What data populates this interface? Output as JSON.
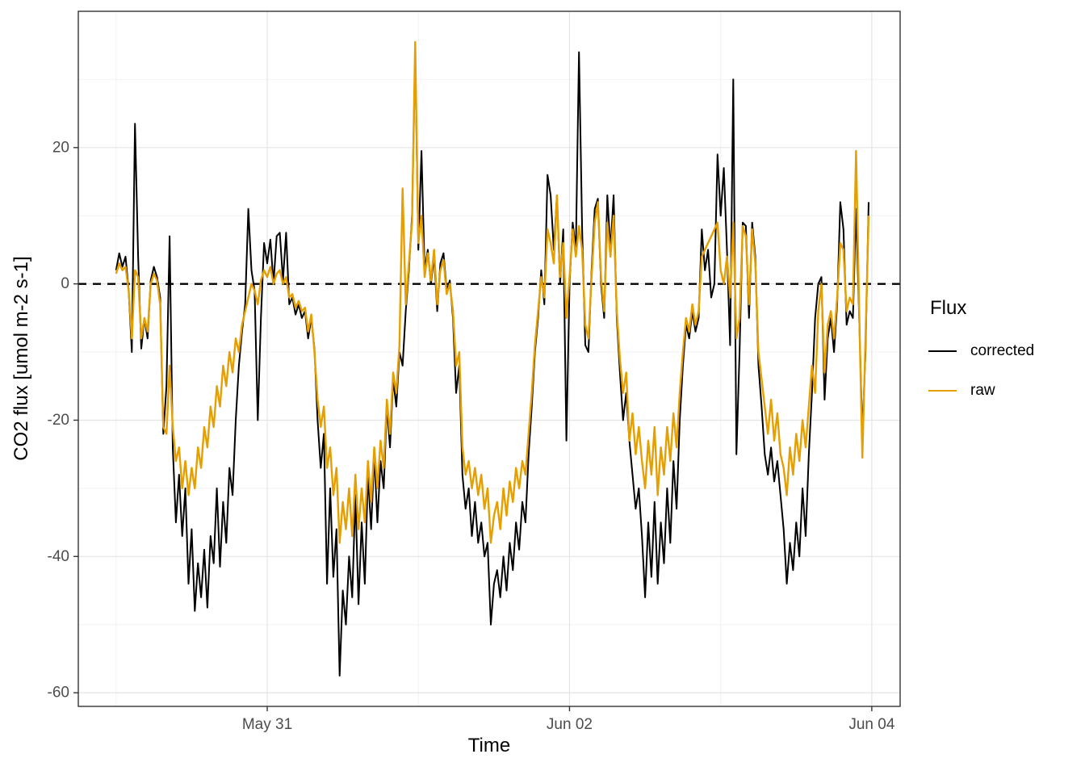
{
  "figure": {
    "xlabel": "Time",
    "ylabel": "CO2 flux [umol m-2 s-1]",
    "legend_title": "Flux"
  },
  "chart_data": {
    "type": "line",
    "title": "",
    "xlabel": "Time",
    "ylabel": "CO2 flux [umol m-2 s-1]",
    "legend_title": "Flux",
    "legend_position": "right",
    "grid": true,
    "x_start": "May 30 00:00",
    "x_step_hours": 0.5,
    "xlim_hours": [
      -6,
      124.5
    ],
    "ylim": [
      -62,
      40
    ],
    "x_ticks": [
      {
        "hours": 24,
        "label": "May 31"
      },
      {
        "hours": 72,
        "label": "Jun 02"
      },
      {
        "hours": 120,
        "label": "Jun 04"
      }
    ],
    "x_minor_ticks_hours": [
      0,
      48,
      96
    ],
    "y_ticks": [
      20,
      0,
      -20,
      -40,
      -60
    ],
    "y_minor_ticks": [
      30,
      10,
      -10,
      -30,
      -50
    ],
    "hline": {
      "y": 0,
      "linetype": "dashed",
      "color": "#000000"
    },
    "series": [
      {
        "name": "corrected",
        "color": "#000000",
        "width": 2,
        "values": [
          2,
          4.5,
          2.5,
          4,
          -1,
          -10,
          23.5,
          4,
          -9.5,
          -5,
          -8,
          0.5,
          2.5,
          1,
          -2,
          -22,
          -15,
          7,
          -24,
          -35,
          -28,
          -37,
          -30,
          -44,
          -36,
          -48,
          -41,
          -46,
          -39,
          -47.5,
          -37,
          -41,
          -30,
          -41.5,
          -32,
          -38,
          -27,
          -31,
          -20,
          -12,
          -7,
          -3,
          11,
          2,
          -1,
          -20,
          -5,
          6,
          3,
          6.5,
          0,
          7,
          7.5,
          0.5,
          7.5,
          -3,
          -2,
          -4.5,
          -3,
          -5,
          -4,
          -8,
          -5,
          -9.5,
          -20,
          -27,
          -22,
          -44,
          -30,
          -43,
          -36,
          -57.5,
          -45,
          -50,
          -40,
          -46,
          -31,
          -47,
          -35,
          -44,
          -28,
          -36,
          -25,
          -35,
          -26,
          -30,
          -18,
          -24,
          -14,
          -18,
          -10,
          -12,
          -4,
          2,
          10,
          34,
          5,
          19.5,
          2,
          5,
          0,
          4,
          -4,
          3,
          4.5,
          -1,
          0.5,
          -5,
          -16,
          -12,
          -28,
          -33,
          -30,
          -37,
          -32,
          -38,
          -35,
          -40,
          -38,
          -50,
          -44,
          -42,
          -46,
          -40,
          -45,
          -38,
          -42,
          -35,
          -39,
          -32,
          -35,
          -25,
          -18,
          -10,
          -5,
          2,
          -3,
          16,
          13,
          5,
          13,
          0,
          8,
          -23,
          0,
          9,
          5,
          34,
          8,
          -9,
          -10,
          2,
          11,
          12.5,
          0,
          -5,
          13,
          5,
          13,
          -5,
          -13,
          -20,
          -16,
          -23,
          -28,
          -33,
          -30,
          -37,
          -46,
          -35,
          -43,
          -32,
          -44,
          -35,
          -41,
          -30,
          -38,
          -26,
          -33,
          -20,
          -12,
          -6,
          -8,
          -4,
          -7,
          -5,
          8,
          2,
          5,
          -2,
          0,
          19,
          10,
          17,
          5,
          -9,
          30,
          -25,
          -10,
          9,
          8.5,
          -5,
          9,
          4,
          -12,
          -18,
          -25,
          -28,
          -24,
          -29,
          -26,
          -31,
          -36,
          -44,
          -38,
          -42,
          -35,
          -40,
          -30,
          -37,
          -25,
          -16,
          -5,
          0,
          1,
          -17,
          -8,
          -5,
          -10,
          -3,
          12,
          8,
          -6,
          -4,
          -5,
          11,
          -5,
          -22,
          -10,
          12
        ]
      },
      {
        "name": "raw",
        "color": "#E69F00",
        "width": 2.4,
        "values": [
          1.5,
          3,
          2,
          2.5,
          -1,
          -8,
          2,
          1,
          -8,
          -5,
          -7,
          0,
          1.5,
          0.5,
          -3,
          -21,
          -22,
          -12,
          -21,
          -26,
          -24,
          -30,
          -26,
          -31,
          -27,
          -30,
          -24,
          -27,
          -21,
          -24,
          -18,
          -21,
          -15,
          -18,
          -12,
          -15,
          -10,
          -13,
          -8,
          -10,
          -6,
          -4,
          -2,
          0,
          -1,
          -3,
          0.5,
          2,
          1,
          2.5,
          0,
          1.5,
          2,
          0,
          1,
          -2,
          -1.5,
          -3.5,
          -2.5,
          -4,
          -3.5,
          -7,
          -4.5,
          -10,
          -17,
          -21,
          -18,
          -27,
          -24,
          -31,
          -27,
          -38,
          -32,
          -36,
          -30,
          -37,
          -28,
          -36,
          -30,
          -35,
          -26,
          -32,
          -24,
          -30,
          -23,
          -27,
          -17,
          -22,
          -13,
          -16,
          -9,
          14,
          -3,
          3,
          9,
          35.5,
          6,
          10,
          1,
          4.5,
          0.5,
          5,
          -3,
          2,
          3.5,
          -1.5,
          0,
          -4,
          -12,
          -10,
          -24,
          -28,
          -26,
          -30,
          -27,
          -31,
          -28,
          -33,
          -30,
          -38,
          -34,
          -32,
          -36,
          -30,
          -34,
          -29,
          -32,
          -27,
          -30,
          -26,
          -28,
          -22,
          -16,
          -9,
          -4,
          1,
          -2,
          8,
          6,
          3,
          13,
          1,
          6,
          -5,
          1,
          8,
          4,
          8.5,
          5,
          -6,
          -8,
          1,
          9,
          12,
          1,
          -4,
          9,
          4,
          10,
          -4,
          -11,
          -16,
          -13,
          -23,
          -19,
          -25,
          -21,
          -26,
          -30,
          -23,
          -28,
          -21,
          -31,
          -24,
          -28,
          -21,
          -26,
          -19,
          -24,
          -16,
          -10,
          -5,
          -7,
          -3,
          -6,
          -4,
          4,
          5,
          6,
          7,
          8,
          9,
          2,
          0,
          4,
          -2,
          9,
          -8,
          -5,
          8.5,
          7,
          -3,
          8,
          3,
          -10,
          -14,
          -18,
          -22,
          -17,
          -23,
          -19,
          -25,
          -27,
          -31,
          -24,
          -28,
          -22,
          -26,
          -20,
          -24,
          -18,
          -12,
          -16,
          -4,
          0,
          -13,
          -6,
          -4,
          -8,
          -2,
          6,
          5,
          -4,
          -2,
          -3,
          19.5,
          -4,
          -25.5,
          -8,
          10
        ]
      }
    ]
  }
}
